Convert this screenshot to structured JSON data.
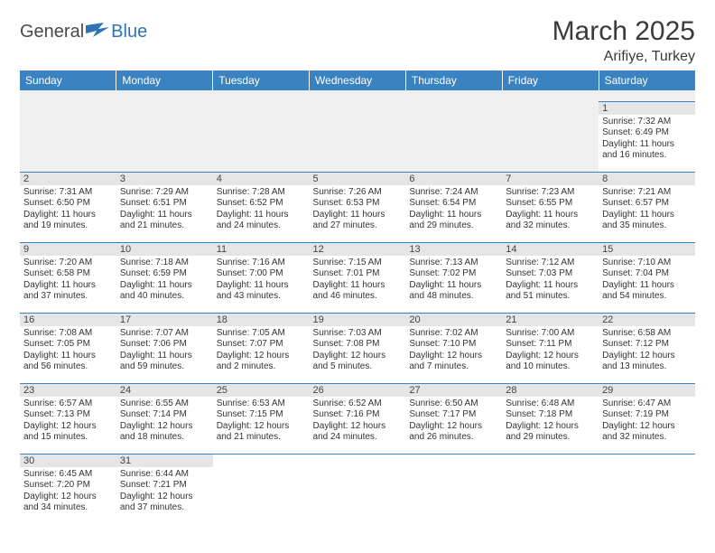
{
  "logo": {
    "word1": "General",
    "word2": "Blue"
  },
  "title": "March 2025",
  "location": "Arifiye, Turkey",
  "dayHeaders": [
    "Sunday",
    "Monday",
    "Tuesday",
    "Wednesday",
    "Thursday",
    "Friday",
    "Saturday"
  ],
  "colors": {
    "headerBg": "#3b83c0",
    "headerText": "#ffffff",
    "dayBg": "#e5e5e5",
    "blankBg": "#efefef",
    "border": "#3b83c0",
    "logoBlue": "#2d73b5",
    "text": "#333333"
  },
  "weeks": [
    [
      null,
      null,
      null,
      null,
      null,
      null,
      {
        "n": 1,
        "sunrise": "7:32 AM",
        "sunset": "6:49 PM",
        "dl_h": 11,
        "dl_m": 16
      }
    ],
    [
      {
        "n": 2,
        "sunrise": "7:31 AM",
        "sunset": "6:50 PM",
        "dl_h": 11,
        "dl_m": 19
      },
      {
        "n": 3,
        "sunrise": "7:29 AM",
        "sunset": "6:51 PM",
        "dl_h": 11,
        "dl_m": 21
      },
      {
        "n": 4,
        "sunrise": "7:28 AM",
        "sunset": "6:52 PM",
        "dl_h": 11,
        "dl_m": 24
      },
      {
        "n": 5,
        "sunrise": "7:26 AM",
        "sunset": "6:53 PM",
        "dl_h": 11,
        "dl_m": 27
      },
      {
        "n": 6,
        "sunrise": "7:24 AM",
        "sunset": "6:54 PM",
        "dl_h": 11,
        "dl_m": 29
      },
      {
        "n": 7,
        "sunrise": "7:23 AM",
        "sunset": "6:55 PM",
        "dl_h": 11,
        "dl_m": 32
      },
      {
        "n": 8,
        "sunrise": "7:21 AM",
        "sunset": "6:57 PM",
        "dl_h": 11,
        "dl_m": 35
      }
    ],
    [
      {
        "n": 9,
        "sunrise": "7:20 AM",
        "sunset": "6:58 PM",
        "dl_h": 11,
        "dl_m": 37
      },
      {
        "n": 10,
        "sunrise": "7:18 AM",
        "sunset": "6:59 PM",
        "dl_h": 11,
        "dl_m": 40
      },
      {
        "n": 11,
        "sunrise": "7:16 AM",
        "sunset": "7:00 PM",
        "dl_h": 11,
        "dl_m": 43
      },
      {
        "n": 12,
        "sunrise": "7:15 AM",
        "sunset": "7:01 PM",
        "dl_h": 11,
        "dl_m": 46
      },
      {
        "n": 13,
        "sunrise": "7:13 AM",
        "sunset": "7:02 PM",
        "dl_h": 11,
        "dl_m": 48
      },
      {
        "n": 14,
        "sunrise": "7:12 AM",
        "sunset": "7:03 PM",
        "dl_h": 11,
        "dl_m": 51
      },
      {
        "n": 15,
        "sunrise": "7:10 AM",
        "sunset": "7:04 PM",
        "dl_h": 11,
        "dl_m": 54
      }
    ],
    [
      {
        "n": 16,
        "sunrise": "7:08 AM",
        "sunset": "7:05 PM",
        "dl_h": 11,
        "dl_m": 56
      },
      {
        "n": 17,
        "sunrise": "7:07 AM",
        "sunset": "7:06 PM",
        "dl_h": 11,
        "dl_m": 59
      },
      {
        "n": 18,
        "sunrise": "7:05 AM",
        "sunset": "7:07 PM",
        "dl_h": 12,
        "dl_m": 2
      },
      {
        "n": 19,
        "sunrise": "7:03 AM",
        "sunset": "7:08 PM",
        "dl_h": 12,
        "dl_m": 5
      },
      {
        "n": 20,
        "sunrise": "7:02 AM",
        "sunset": "7:10 PM",
        "dl_h": 12,
        "dl_m": 7
      },
      {
        "n": 21,
        "sunrise": "7:00 AM",
        "sunset": "7:11 PM",
        "dl_h": 12,
        "dl_m": 10
      },
      {
        "n": 22,
        "sunrise": "6:58 AM",
        "sunset": "7:12 PM",
        "dl_h": 12,
        "dl_m": 13
      }
    ],
    [
      {
        "n": 23,
        "sunrise": "6:57 AM",
        "sunset": "7:13 PM",
        "dl_h": 12,
        "dl_m": 15
      },
      {
        "n": 24,
        "sunrise": "6:55 AM",
        "sunset": "7:14 PM",
        "dl_h": 12,
        "dl_m": 18
      },
      {
        "n": 25,
        "sunrise": "6:53 AM",
        "sunset": "7:15 PM",
        "dl_h": 12,
        "dl_m": 21
      },
      {
        "n": 26,
        "sunrise": "6:52 AM",
        "sunset": "7:16 PM",
        "dl_h": 12,
        "dl_m": 24
      },
      {
        "n": 27,
        "sunrise": "6:50 AM",
        "sunset": "7:17 PM",
        "dl_h": 12,
        "dl_m": 26
      },
      {
        "n": 28,
        "sunrise": "6:48 AM",
        "sunset": "7:18 PM",
        "dl_h": 12,
        "dl_m": 29
      },
      {
        "n": 29,
        "sunrise": "6:47 AM",
        "sunset": "7:19 PM",
        "dl_h": 12,
        "dl_m": 32
      }
    ],
    [
      {
        "n": 30,
        "sunrise": "6:45 AM",
        "sunset": "7:20 PM",
        "dl_h": 12,
        "dl_m": 34
      },
      {
        "n": 31,
        "sunrise": "6:44 AM",
        "sunset": "7:21 PM",
        "dl_h": 12,
        "dl_m": 37
      },
      null,
      null,
      null,
      null,
      null
    ]
  ],
  "labels": {
    "sunrise": "Sunrise:",
    "sunset": "Sunset:",
    "daylight_tpl": "Daylight: {h} hours and {m} minutes."
  }
}
